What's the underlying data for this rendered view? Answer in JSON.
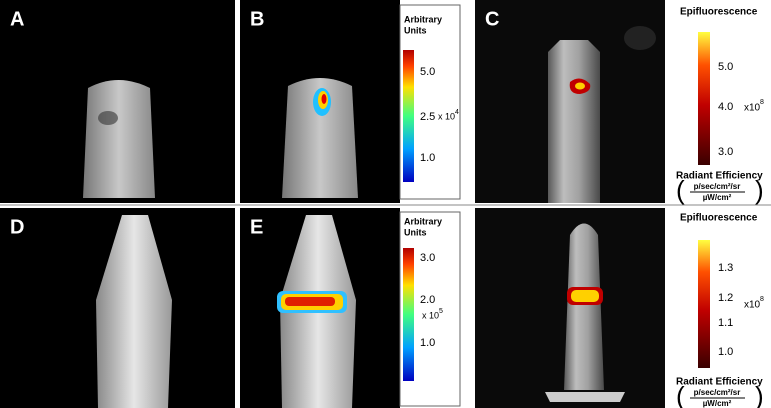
{
  "panels": [
    {
      "label": "A"
    },
    {
      "label": "B"
    },
    {
      "label": "C"
    },
    {
      "label": "D"
    },
    {
      "label": "E"
    }
  ],
  "colorbars": [
    {
      "title": [
        "Arbitrary",
        "Units"
      ],
      "ticks": [
        "5.0",
        "2.5",
        "1.0"
      ],
      "multiplier": "x 10",
      "exponent": "4"
    },
    {
      "title": [
        "Epifluorescence"
      ],
      "ticks": [
        "5.0",
        "4.0",
        "3.0"
      ],
      "multiplier": "x10",
      "exponent": "8",
      "units_title": "Radiant Efficiency",
      "units_numerator": "p/sec/cm²/sr",
      "units_denominator": "µW/cm²"
    },
    {
      "title": [
        "Arbitrary",
        "Units"
      ],
      "ticks": [
        "3.0",
        "2.0",
        "1.0"
      ],
      "multiplier": "x 10",
      "exponent": "5"
    },
    {
      "title": [
        "Epifluorescence"
      ],
      "ticks": [
        "1.3",
        "1.2",
        "1.1",
        "1.0"
      ],
      "multiplier": "x10",
      "exponent": "8",
      "units_title": "Radiant Efficiency",
      "units_numerator": "p/sec/cm²/sr",
      "units_denominator": "µW/cm²"
    }
  ]
}
